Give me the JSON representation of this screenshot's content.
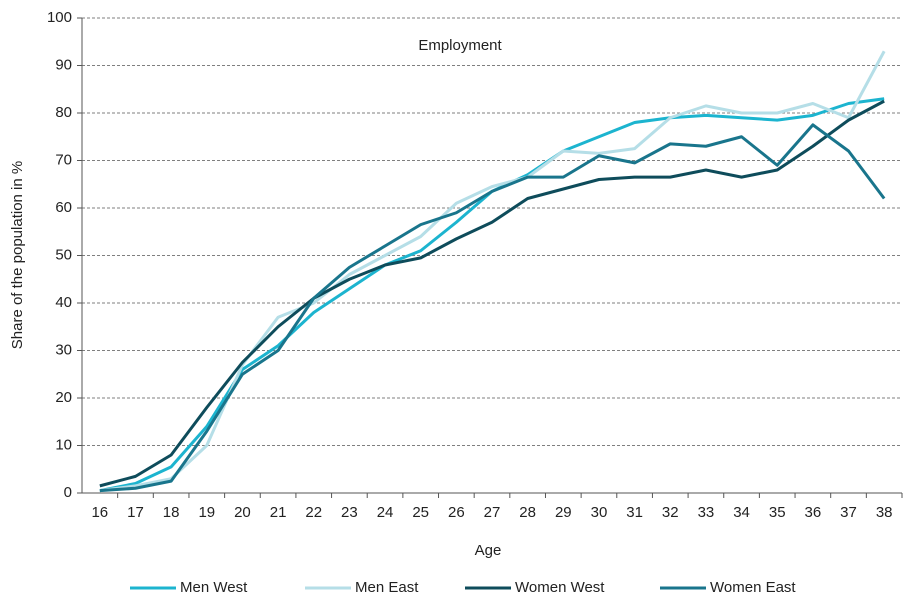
{
  "chart_data": {
    "type": "line",
    "title": "Employment",
    "x_label": "Age",
    "y_label": "Share of the population in %",
    "categories": [
      "16",
      "17",
      "18",
      "19",
      "20",
      "21",
      "22",
      "23",
      "24",
      "25",
      "26",
      "27",
      "28",
      "29",
      "30",
      "31",
      "32",
      "33",
      "34",
      "35",
      "36",
      "37",
      "38"
    ],
    "series": [
      {
        "name": "Men West",
        "color": "#1cb4cf",
        "values": [
          0.5,
          2,
          5.5,
          14,
          26,
          31,
          38,
          43,
          48,
          51,
          57,
          63.5,
          67,
          72,
          75,
          78,
          79,
          79.5,
          79,
          78.5,
          79.5,
          82,
          83
        ]
      },
      {
        "name": "Men East",
        "color": "#b5dee7",
        "values": [
          0.5,
          1.5,
          3,
          10,
          27,
          37,
          40,
          46,
          50,
          54,
          61,
          64.5,
          66.5,
          72,
          71.5,
          72.5,
          79,
          81.5,
          80,
          80,
          82,
          79,
          93
        ]
      },
      {
        "name": "Women West",
        "color": "#0e4c5b",
        "values": [
          1.5,
          3.5,
          8,
          18,
          27.5,
          35,
          41,
          45,
          48,
          49.5,
          53.5,
          57,
          62,
          64,
          66,
          66.5,
          66.5,
          68,
          66.5,
          68,
          73,
          78.5,
          82.5
        ]
      },
      {
        "name": "Women East",
        "color": "#19758c",
        "values": [
          0.5,
          1,
          2.5,
          13,
          25,
          30,
          41,
          47.5,
          52,
          56.5,
          59,
          63.5,
          66.5,
          66.5,
          71,
          69.5,
          73.5,
          73,
          75,
          69,
          77.5,
          72,
          62
        ]
      }
    ],
    "ylim": [
      0,
      100
    ],
    "yticks": [
      0,
      10,
      20,
      30,
      40,
      50,
      60,
      70,
      80,
      90,
      100
    ],
    "grid": true,
    "legend": "bottom"
  }
}
